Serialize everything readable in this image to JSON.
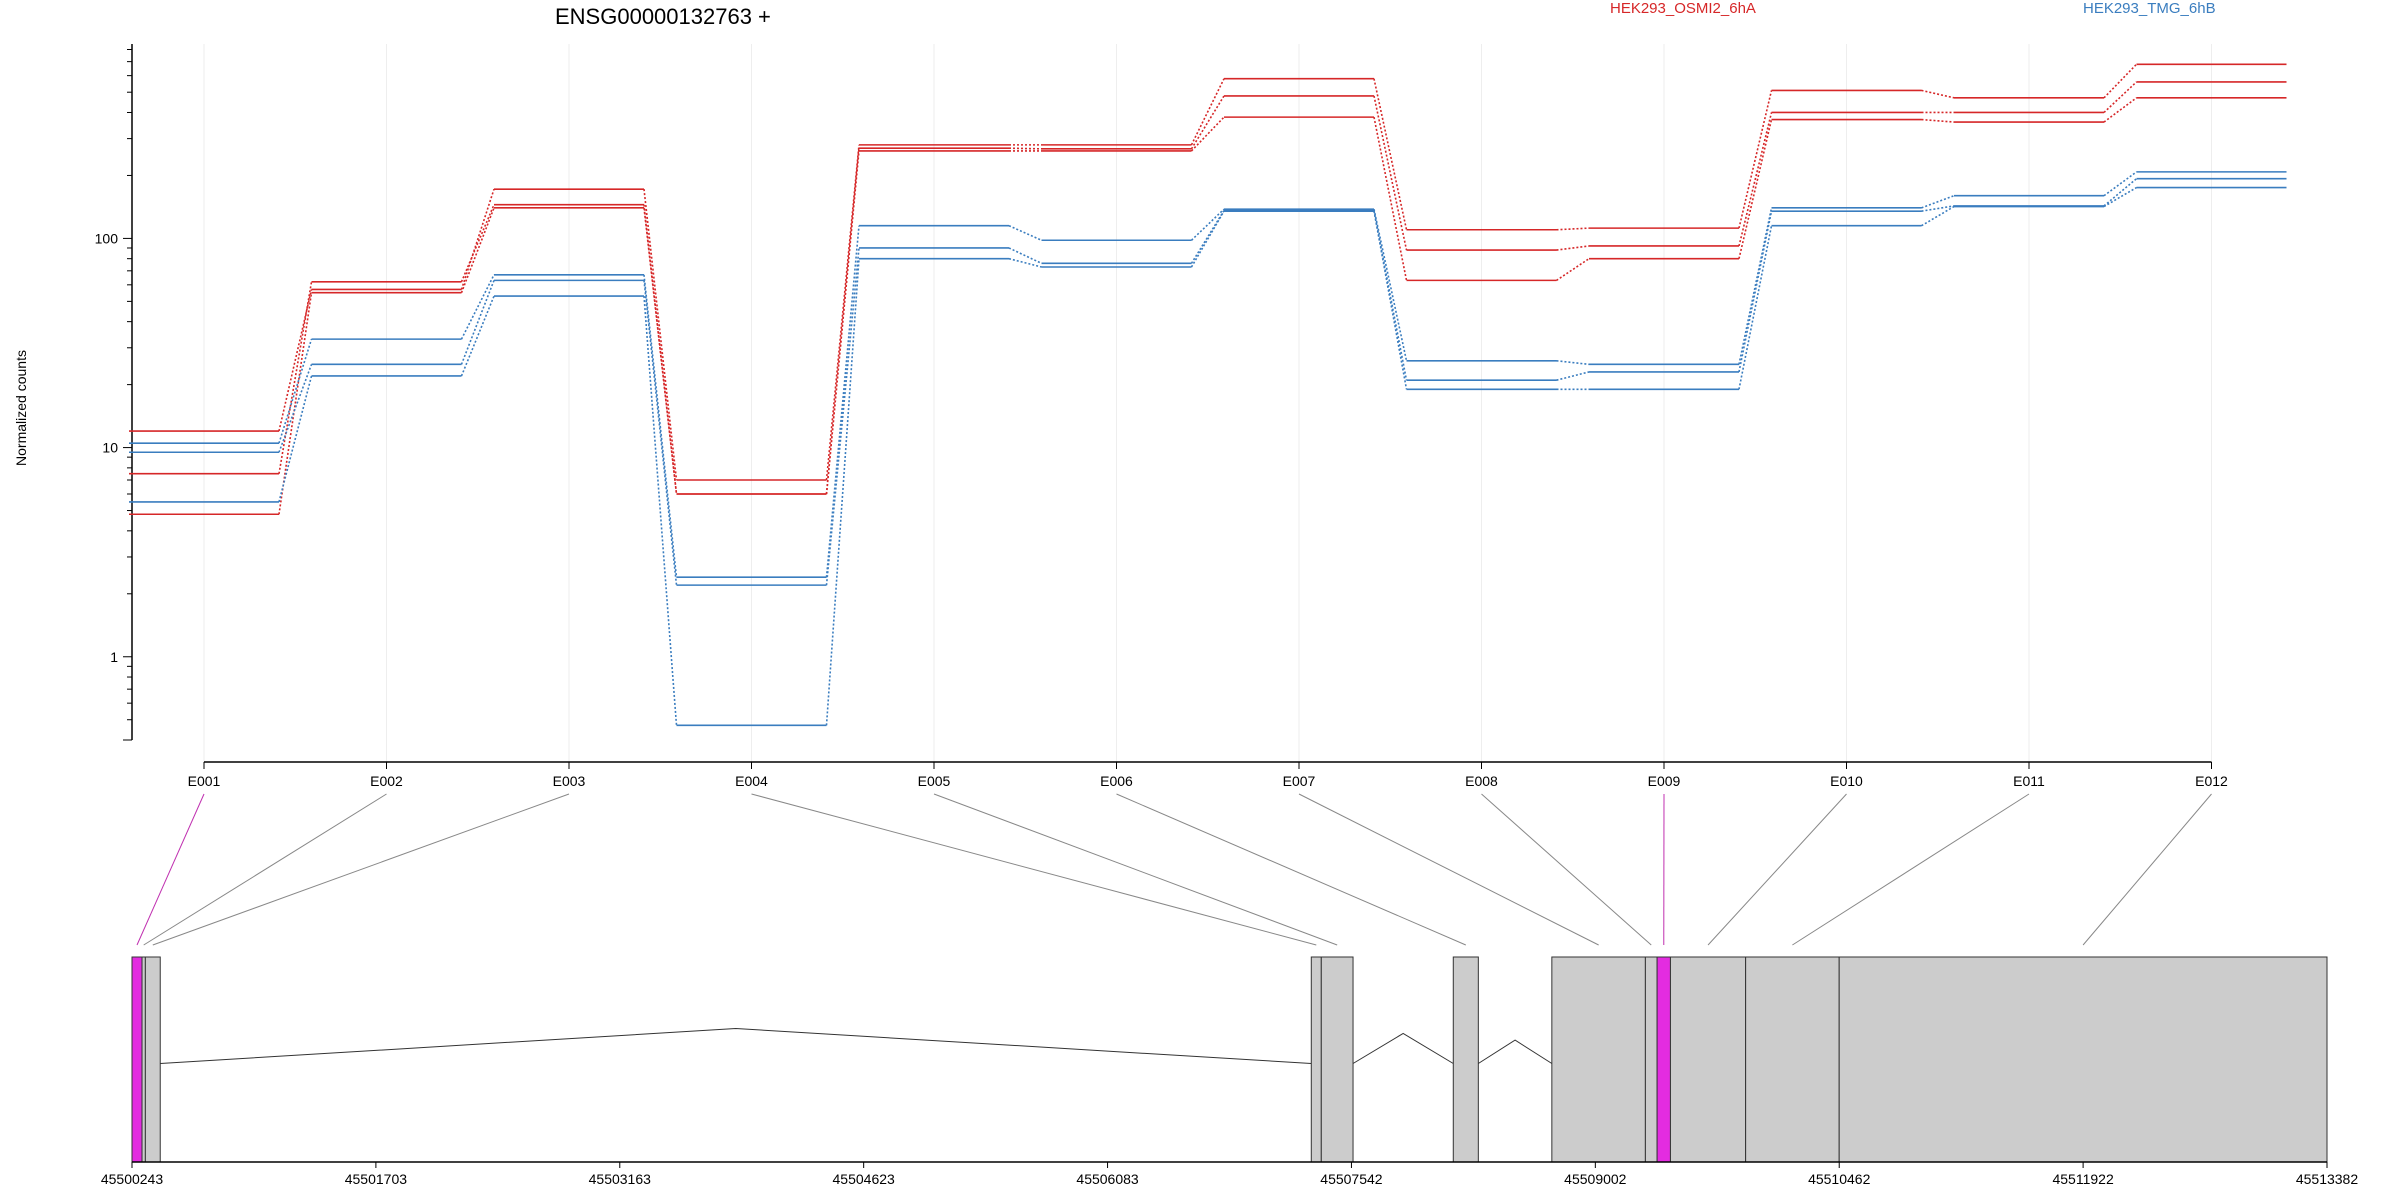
{
  "chart_data": {
    "type": "line",
    "title": "ENSG00000132763 +",
    "ylabel": "Normalized counts",
    "yscale": "log",
    "ylim": [
      0.4,
      850
    ],
    "y_ticks": [
      1,
      10,
      100
    ],
    "y_tick_labels": [
      "1",
      "10",
      "100"
    ],
    "categories": [
      "E001",
      "E002",
      "E003",
      "E004",
      "E005",
      "E006",
      "E007",
      "E008",
      "E009",
      "E010",
      "E011",
      "E012"
    ],
    "groups": [
      {
        "name": "HEK293_OSMI2_6hA",
        "color": "#d62728"
      },
      {
        "name": "HEK293_TMG_6hB",
        "color": "#3a7dbf"
      }
    ],
    "series": [
      {
        "group": 0,
        "values": [
          12,
          57,
          172,
          7,
          280,
          280,
          580,
          110,
          112,
          510,
          470,
          680
        ]
      },
      {
        "group": 0,
        "values": [
          7.5,
          62,
          145,
          6,
          270,
          268,
          480,
          88,
          92,
          400,
          400,
          560
        ]
      },
      {
        "group": 0,
        "values": [
          4.8,
          55,
          140,
          6,
          262,
          262,
          380,
          63,
          80,
          370,
          360,
          470
        ]
      },
      {
        "group": 1,
        "values": [
          10.5,
          33,
          67,
          2.4,
          115,
          98,
          138,
          26,
          25,
          140,
          160,
          208
        ]
      },
      {
        "group": 1,
        "values": [
          9.5,
          25,
          63,
          2.2,
          90,
          76,
          136,
          21,
          23,
          135,
          143,
          193
        ]
      },
      {
        "group": 1,
        "values": [
          5.5,
          22,
          53,
          0.47,
          80,
          73,
          135,
          19,
          19,
          115,
          142,
          175
        ]
      }
    ],
    "genomic_axis": {
      "tick_labels": [
        "45500243",
        "45501703",
        "45503163",
        "45504623",
        "45506083",
        "45507542",
        "45509002",
        "45510462",
        "45511922",
        "45513382"
      ],
      "range": [
        45500243,
        45513382
      ]
    },
    "gene_model": {
      "exons": [
        {
          "label": "E001",
          "start": 45500243,
          "end": 45500303,
          "highlight": true
        },
        {
          "label": "E002",
          "start": 45500303,
          "end": 45500323,
          "highlight": false
        },
        {
          "label": "E003",
          "start": 45500323,
          "end": 45500412,
          "highlight": false
        },
        {
          "label": "E004",
          "start": 45507302,
          "end": 45507362,
          "highlight": false
        },
        {
          "label": "E005",
          "start": 45507362,
          "end": 45507552,
          "highlight": false
        },
        {
          "label": "E006",
          "start": 45508152,
          "end": 45508302,
          "highlight": false
        },
        {
          "label": "E007",
          "start": 45508742,
          "end": 45509302,
          "highlight": false
        },
        {
          "label": "E008",
          "start": 45509302,
          "end": 45509372,
          "highlight": false
        },
        {
          "label": "E009",
          "start": 45509372,
          "end": 45509452,
          "highlight": true
        },
        {
          "label": "E010",
          "start": 45509452,
          "end": 45509902,
          "highlight": false
        },
        {
          "label": "E011",
          "start": 45509902,
          "end": 45510462,
          "highlight": false
        },
        {
          "label": "E012",
          "start": 45510462,
          "end": 45513382,
          "highlight": false
        }
      ],
      "introns": [
        {
          "start": 45500412,
          "end": 45507302
        },
        {
          "start": 45507552,
          "end": 45508152
        },
        {
          "start": 45508302,
          "end": 45508742
        }
      ]
    },
    "colors": {
      "exon_fill": "#cccccc",
      "highlight_fill": "#e32ce0",
      "connector": "#888888",
      "highlight_connector": "#c030b0"
    }
  }
}
